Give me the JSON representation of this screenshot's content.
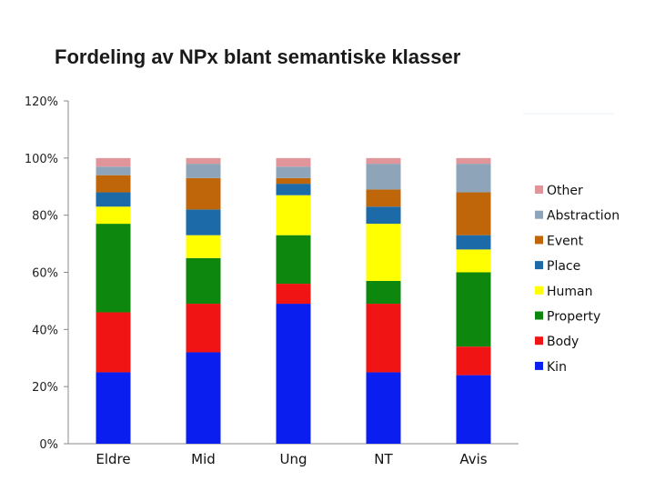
{
  "slide": {
    "background": "#ffffff"
  },
  "chart_data": {
    "type": "bar",
    "stacked": true,
    "title": "Fordeling av NPx blant semantiske klasser",
    "xlabel": "",
    "ylabel": "",
    "ylim": [
      0,
      120
    ],
    "yticks": [
      0,
      20,
      40,
      60,
      80,
      100,
      120
    ],
    "ytick_labels": [
      "0%",
      "20%",
      "40%",
      "60%",
      "80%",
      "100%",
      "120%"
    ],
    "categories": [
      "Eldre",
      "Mid",
      "Ung",
      "NT",
      "Avis"
    ],
    "grid": false,
    "legend_position": "right",
    "series": [
      {
        "name": "Kin",
        "color": "#0a1ef0",
        "values": [
          25,
          32,
          49,
          25,
          24
        ]
      },
      {
        "name": "Body",
        "color": "#f01414",
        "values": [
          21,
          17,
          7,
          24,
          10
        ]
      },
      {
        "name": "Property",
        "color": "#0e870e",
        "values": [
          31,
          16,
          17,
          8,
          26
        ]
      },
      {
        "name": "Human",
        "color": "#ffff00",
        "values": [
          6,
          8,
          14,
          20,
          8
        ]
      },
      {
        "name": "Place",
        "color": "#1c6aa8",
        "values": [
          5,
          9,
          4,
          6,
          5
        ]
      },
      {
        "name": "Event",
        "color": "#c0660a",
        "values": [
          6,
          11,
          2,
          6,
          15
        ]
      },
      {
        "name": "Abstraction",
        "color": "#8ea4b8",
        "values": [
          3,
          5,
          4,
          9,
          10
        ]
      },
      {
        "name": "Other",
        "color": "#e0959a",
        "values": [
          3,
          2,
          3,
          2,
          2
        ]
      }
    ]
  }
}
